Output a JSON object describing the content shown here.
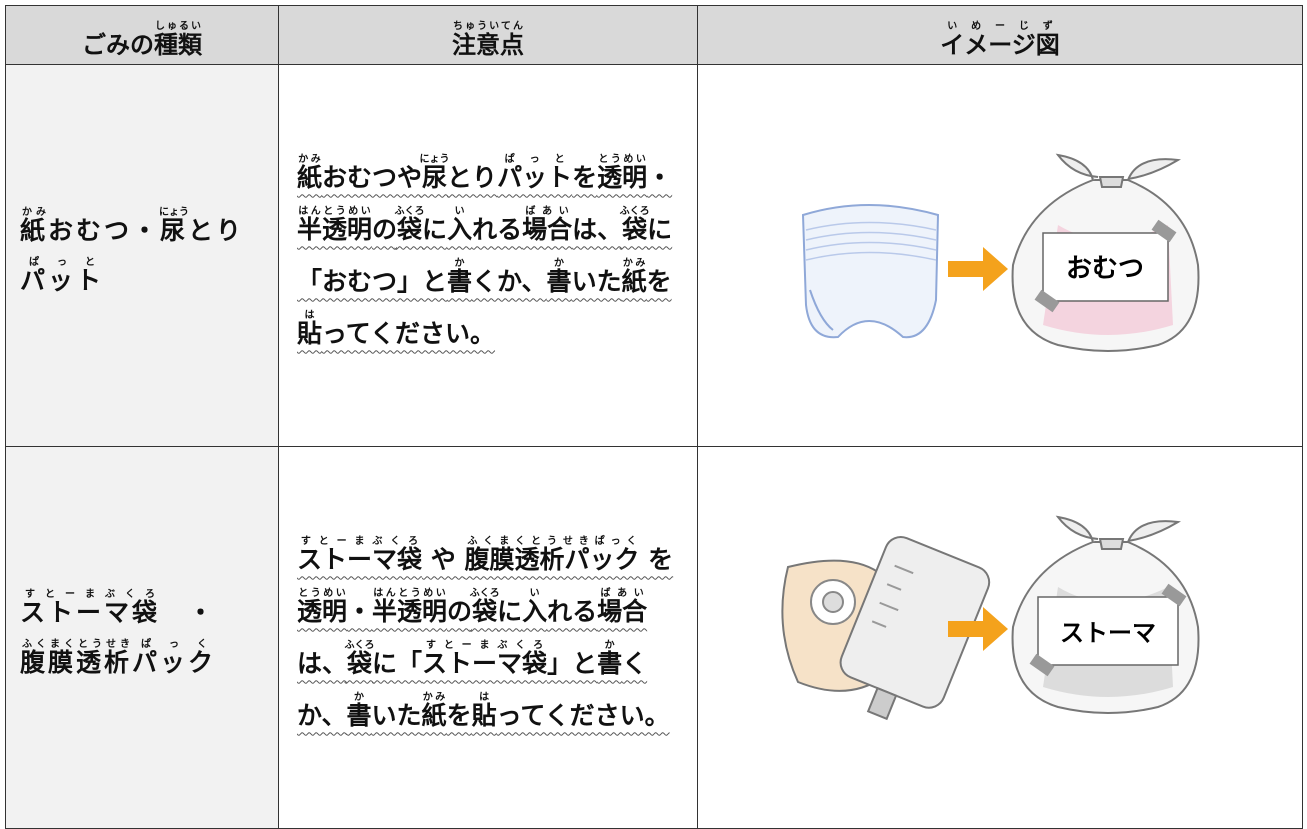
{
  "table": {
    "header": [
      [
        [
          "ごみの"
        ],
        [
          "種類",
          "しゅるい"
        ]
      ],
      [
        [
          "注意点",
          "ちゅういてん"
        ]
      ],
      [
        [
          "イメージ図",
          "いめーじず"
        ]
      ]
    ],
    "rows": [
      {
        "category": [
          [
            "紙",
            "かみ"
          ],
          [
            "おむつ・"
          ],
          [
            "尿",
            "にょう"
          ],
          [
            "とり"
          ],
          [
            "パット",
            "ぱっと"
          ]
        ],
        "note": [
          [
            "紙",
            "かみ"
          ],
          [
            "おむつや"
          ],
          [
            "尿",
            "にょう"
          ],
          [
            "とり"
          ],
          [
            "パット",
            "ぱっと"
          ],
          [
            "を"
          ],
          [
            "透明",
            "とうめい"
          ],
          [
            "・"
          ],
          [
            "半透明",
            "はんとうめい"
          ],
          [
            "の"
          ],
          [
            "袋",
            "ふくろ"
          ],
          [
            "に"
          ],
          [
            "入",
            "い"
          ],
          [
            "れる"
          ],
          [
            "場合",
            "ばあい"
          ],
          [
            "は、"
          ],
          [
            "袋",
            "ふくろ"
          ],
          [
            "に「おむつ」と"
          ],
          [
            "書",
            "か"
          ],
          [
            "くか、"
          ],
          [
            "書",
            "か"
          ],
          [
            "いた"
          ],
          [
            "紙",
            "かみ"
          ],
          [
            "を"
          ],
          [
            "貼",
            "は"
          ],
          [
            "ってください。"
          ]
        ],
        "image_label": "おむつ"
      },
      {
        "category": [
          [
            "ストーマ袋",
            "すとーまぶくろ"
          ],
          [
            "　・　"
          ],
          [
            "腹膜",
            "ふくまく"
          ],
          [
            "透析",
            "とうせき"
          ],
          [
            "パック",
            "ぱっく"
          ]
        ],
        "note": [
          [
            "ストーマ袋",
            "すとーまぶくろ"
          ],
          [
            " や "
          ],
          [
            "腹膜透析パック",
            "ふくまくとうせきぱっく"
          ],
          [
            " を"
          ],
          [
            "透明",
            "とうめい"
          ],
          [
            "・"
          ],
          [
            "半透明",
            "はんとうめい"
          ],
          [
            "の"
          ],
          [
            "袋",
            "ふくろ"
          ],
          [
            "に"
          ],
          [
            "入",
            "い"
          ],
          [
            "れる"
          ],
          [
            "場合",
            "ばあい"
          ],
          [
            "は、"
          ],
          [
            "袋",
            "ふくろ"
          ],
          [
            "に「"
          ],
          [
            "ストーマ袋",
            "すとーまぶくろ"
          ],
          [
            "」と"
          ],
          [
            "書",
            "か"
          ],
          [
            "くか、"
          ],
          [
            "書",
            "か"
          ],
          [
            "いた"
          ],
          [
            "紙",
            "かみ"
          ],
          [
            "を"
          ],
          [
            "貼",
            "は"
          ],
          [
            "ってください。"
          ]
        ],
        "image_label": "ストーマ"
      }
    ]
  }
}
